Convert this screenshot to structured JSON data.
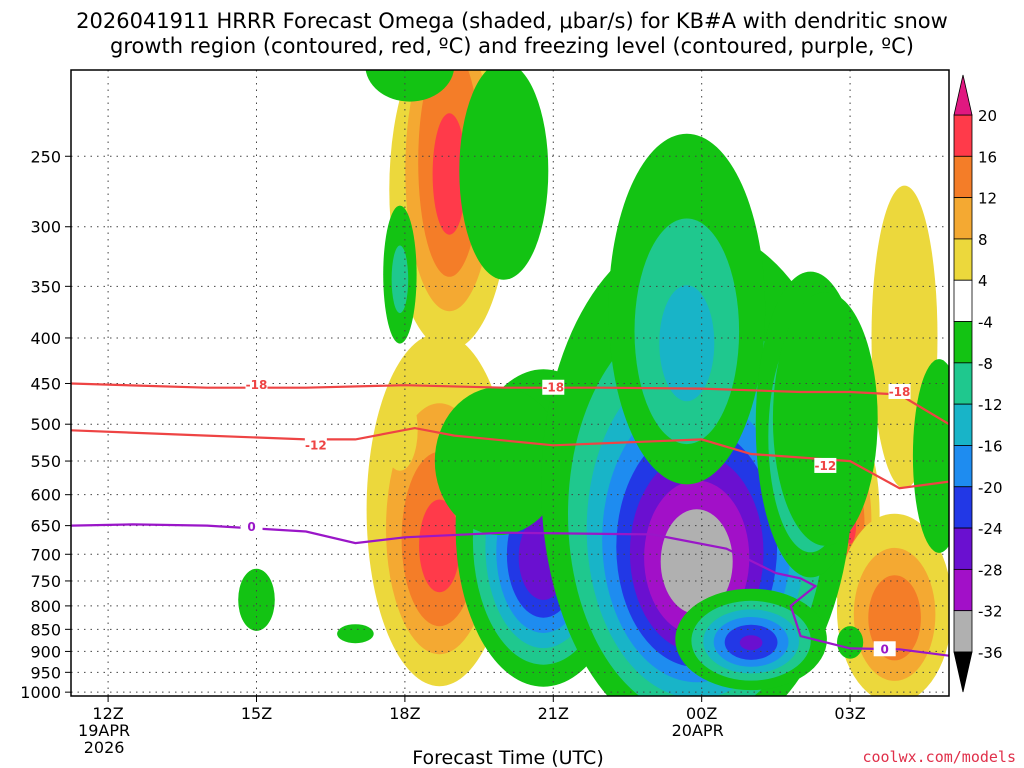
{
  "title": {
    "line1": "2026041911 HRRR Forecast Omega (shaded, μbar/s) for KB#A with dendritic snow",
    "line2": "growth region (contoured, red, ºC) and freezing level (contoured, purple, ºC)"
  },
  "credit": "coolwx.com/models",
  "chart_data": {
    "type": "heatmap",
    "xlabel": "Forecast Time (UTC)",
    "ylabel": "",
    "x_ticks": [
      {
        "label": "12Z",
        "sub": [
          "19APR",
          "2026"
        ],
        "hours": 0
      },
      {
        "label": "15Z",
        "sub": [],
        "hours": 3
      },
      {
        "label": "18Z",
        "sub": [],
        "hours": 6
      },
      {
        "label": "21Z",
        "sub": [],
        "hours": 9
      },
      {
        "label": "00Z",
        "sub": [
          "20APR"
        ],
        "hours": 12
      },
      {
        "label": "03Z",
        "sub": [],
        "hours": 15
      }
    ],
    "xlim": [
      -0.75,
      17.0
    ],
    "y_ticks": [
      250,
      300,
      350,
      400,
      450,
      500,
      550,
      600,
      650,
      700,
      750,
      800,
      850,
      900,
      950,
      1000
    ],
    "ylim": [
      200,
      1010
    ],
    "y_scale": "log",
    "colorbar": {
      "labels": [
        "20",
        "16",
        "12",
        "8",
        "4",
        "-4",
        "-8",
        "-12",
        "-16",
        "-20",
        "-24",
        "-28",
        "-32",
        "-36"
      ],
      "bands": [
        {
          "lo": 16,
          "hi": 20,
          "color": "#ff3a4a"
        },
        {
          "lo": 12,
          "hi": 16,
          "color": "#f47d28"
        },
        {
          "lo": 8,
          "hi": 12,
          "color": "#f4a932"
        },
        {
          "lo": 4,
          "hi": 8,
          "color": "#ecd83c"
        },
        {
          "lo": -4,
          "hi": 4,
          "color": "#ffffff"
        },
        {
          "lo": -8,
          "hi": -4,
          "color": "#13c313"
        },
        {
          "lo": -12,
          "hi": -8,
          "color": "#1fc88e"
        },
        {
          "lo": -16,
          "hi": -12,
          "color": "#18b4c8"
        },
        {
          "lo": -20,
          "hi": -16,
          "color": "#1e8cf0"
        },
        {
          "lo": -24,
          "hi": -20,
          "color": "#2238e6"
        },
        {
          "lo": -28,
          "hi": -24,
          "color": "#6a10d0"
        },
        {
          "lo": -32,
          "hi": -28,
          "color": "#a210c8"
        },
        {
          "lo": -36,
          "hi": -32,
          "color": "#b0b0b0"
        }
      ],
      "top_arrow_color": "#e01880",
      "bottom_arrow_color": "#000000"
    },
    "omega_features": [
      {
        "t": 6.9,
        "p": 265,
        "dt": 0.7,
        "dp": 85,
        "peak": 18
      },
      {
        "t": 6.3,
        "p": 180,
        "dt": 0.6,
        "dp": 55,
        "peak": 4
      },
      {
        "t": 6.7,
        "p": 690,
        "dt": 0.85,
        "dp": 170,
        "peak": 18
      },
      {
        "t": 5.9,
        "p": 510,
        "dt": 0.4,
        "dp": 60,
        "peak": 6
      },
      {
        "t": 15.0,
        "p": 650,
        "dt": 0.35,
        "dp": 90,
        "peak": 17
      },
      {
        "t": 15.9,
        "p": 830,
        "dt": 0.7,
        "dp": 120,
        "peak": 16
      },
      {
        "t": 16.1,
        "p": 430,
        "dt": 1.0,
        "dp": 240,
        "peak": 5
      },
      {
        "t": 15.2,
        "p": 260,
        "dt": 1.0,
        "dp": 60,
        "peak": 4
      },
      {
        "t": 13.8,
        "p": 540,
        "dt": 0.3,
        "dp": 120,
        "peak": 5
      },
      {
        "t": 8.0,
        "p": 270,
        "dt": 0.85,
        "dp": 70,
        "peak": -7
      },
      {
        "t": 6.1,
        "p": 180,
        "dt": 0.85,
        "dp": 35,
        "peak": -7
      },
      {
        "t": 5.9,
        "p": 345,
        "dt": 0.25,
        "dp": 45,
        "peak": -10
      },
      {
        "t": 8.8,
        "p": 710,
        "dt": 0.9,
        "dp": 140,
        "peak": -28
      },
      {
        "t": 7.9,
        "p": 560,
        "dt": 1.1,
        "dp": 90,
        "peak": -8
      },
      {
        "t": 11.9,
        "p": 720,
        "dt": 1.5,
        "dp": 200,
        "peak": -36
      },
      {
        "t": 13.0,
        "p": 880,
        "dt": 0.8,
        "dp": 60,
        "peak": -25
      },
      {
        "t": 11.7,
        "p": 410,
        "dt": 1.0,
        "dp": 110,
        "peak": -14
      },
      {
        "t": 14.2,
        "p": 540,
        "dt": 0.6,
        "dp": 110,
        "peak": -22
      },
      {
        "t": 14.5,
        "p": 520,
        "dt": 0.9,
        "dp": 140,
        "peak": -8
      },
      {
        "t": 16.8,
        "p": 560,
        "dt": 0.5,
        "dp": 130,
        "peak": -7
      },
      {
        "t": 3.0,
        "p": 790,
        "dt": 0.35,
        "dp": 60,
        "peak": -7
      },
      {
        "t": 15.0,
        "p": 880,
        "dt": 0.25,
        "dp": 35,
        "peak": -7
      },
      {
        "t": 5.0,
        "p": 860,
        "dt": 0.35,
        "dp": 20,
        "peak": -7
      }
    ],
    "contours": [
      {
        "name": "-18",
        "color": "#ee4444",
        "label_at": [
          [
            3.0,
            452
          ],
          [
            9.0,
            455
          ],
          [
            16.0,
            460
          ]
        ],
        "points": [
          [
            -0.75,
            450
          ],
          [
            2,
            455
          ],
          [
            4,
            455
          ],
          [
            6,
            452
          ],
          [
            8,
            455
          ],
          [
            10,
            455
          ],
          [
            12,
            456
          ],
          [
            14,
            460
          ],
          [
            15,
            460
          ],
          [
            16,
            463
          ],
          [
            17,
            500
          ]
        ]
      },
      {
        "name": "-12",
        "color": "#ee4444",
        "label_at": [
          [
            4.2,
            528
          ],
          [
            14.5,
            557
          ]
        ],
        "points": [
          [
            -0.75,
            508
          ],
          [
            2,
            515
          ],
          [
            4,
            520
          ],
          [
            5,
            520
          ],
          [
            6.2,
            505
          ],
          [
            7,
            515
          ],
          [
            9,
            528
          ],
          [
            12,
            520
          ],
          [
            13,
            540
          ],
          [
            14,
            545
          ],
          [
            15,
            550
          ],
          [
            16,
            590
          ],
          [
            17,
            580
          ]
        ]
      },
      {
        "name": "0",
        "color": "#9a16c8",
        "label_at": [
          [
            2.9,
            652
          ],
          [
            15.7,
            895
          ]
        ],
        "points": [
          [
            -0.75,
            650
          ],
          [
            0.5,
            648
          ],
          [
            2,
            650
          ],
          [
            4,
            660
          ],
          [
            5,
            680
          ],
          [
            6,
            670
          ],
          [
            8,
            662
          ],
          [
            11,
            665
          ],
          [
            12.5,
            690
          ],
          [
            13.5,
            735
          ],
          [
            14.0,
            745
          ],
          [
            14.3,
            760
          ],
          [
            13.8,
            800
          ],
          [
            14.0,
            865
          ],
          [
            15,
            893
          ],
          [
            16,
            895
          ],
          [
            17,
            910
          ]
        ]
      }
    ]
  }
}
